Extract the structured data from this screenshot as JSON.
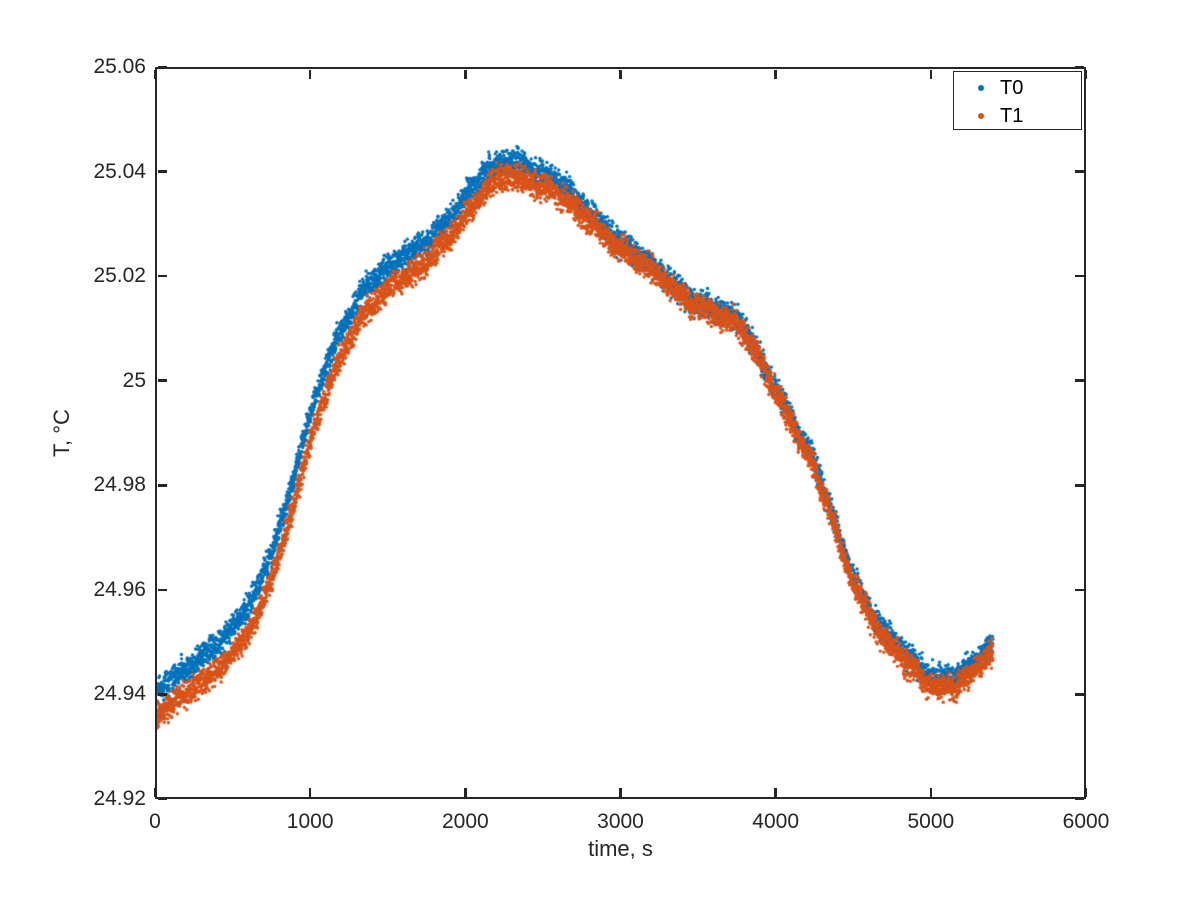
{
  "figure": {
    "background": "#ffffff",
    "axes_color": "#262626"
  },
  "chart_data": {
    "type": "scatter",
    "title": "",
    "xlabel": "time, s",
    "ylabel": "T, °C",
    "xlim": [
      0,
      6000
    ],
    "ylim": [
      24.92,
      25.06
    ],
    "xticks": [
      0,
      1000,
      2000,
      3000,
      4000,
      5000,
      6000
    ],
    "xtick_labels": [
      "0",
      "1000",
      "2000",
      "3000",
      "4000",
      "5000",
      "6000"
    ],
    "yticks": [
      24.92,
      24.94,
      24.96,
      24.98,
      25,
      25.02,
      25.04,
      25.06
    ],
    "ytick_labels": [
      "24.92",
      "24.94",
      "24.96",
      "24.98",
      "25",
      "25.02",
      "25.04",
      "25.06"
    ],
    "grid": false,
    "legend": {
      "position": "top-right",
      "entries": [
        {
          "label": "T0",
          "color": "#0072BD"
        },
        {
          "label": "T1",
          "color": "#D95319"
        }
      ]
    },
    "marker": {
      "style": "dot",
      "radius_px": 1.7
    },
    "noise": {
      "std": 0.0012,
      "wiggle": [
        {
          "amp": 0.0004,
          "period_s": 530,
          "phase": 1.1
        },
        {
          "amp": 0.0003,
          "period_s": 170,
          "phase": 2.6
        }
      ]
    },
    "sampling": {
      "t_start": 0,
      "t_end": 5400,
      "n_points": 5400
    },
    "series": [
      {
        "name": "T0",
        "color": "#0072BD",
        "seed": 42,
        "control_t": [
          0,
          150,
          300,
          450,
          550,
          650,
          750,
          850,
          950,
          1050,
          1150,
          1250,
          1350,
          1450,
          1550,
          1650,
          1750,
          1850,
          1950,
          2050,
          2150,
          2250,
          2350,
          2450,
          2550,
          2650,
          2750,
          2850,
          2950,
          3050,
          3150,
          3250,
          3350,
          3450,
          3550,
          3650,
          3750,
          3850,
          3950,
          4050,
          4150,
          4250,
          4350,
          4450,
          4550,
          4650,
          4750,
          4850,
          4950,
          5050,
          5150,
          5250,
          5350,
          5400
        ],
        "control_T": [
          24.94,
          24.9435,
          24.9475,
          24.951,
          24.9545,
          24.959,
          24.9675,
          24.977,
          24.988,
          24.998,
          25.006,
          25.0125,
          25.018,
          25.0205,
          25.0225,
          25.024,
          25.0265,
          25.03,
          25.0335,
          25.037,
          25.04,
          25.042,
          25.042,
          25.0405,
          25.039,
          25.0365,
          25.0335,
          25.031,
          25.028,
          25.0255,
          25.023,
          25.0205,
          25.018,
          25.016,
          25.0145,
          25.013,
          25.0115,
          25.007,
          25.002,
          24.996,
          24.99,
          24.9835,
          24.9755,
          24.9665,
          24.9595,
          24.954,
          24.95,
          24.947,
          24.9445,
          24.9435,
          24.9435,
          24.945,
          24.948,
          24.9495
        ]
      },
      {
        "name": "T1",
        "color": "#D95319",
        "seed": 1337,
        "control_t": [
          0,
          150,
          300,
          450,
          550,
          650,
          750,
          850,
          950,
          1050,
          1150,
          1250,
          1350,
          1450,
          1550,
          1650,
          1750,
          1850,
          1950,
          2050,
          2150,
          2250,
          2350,
          2450,
          2550,
          2650,
          2750,
          2850,
          2950,
          3050,
          3150,
          3250,
          3350,
          3450,
          3550,
          3650,
          3750,
          3850,
          3950,
          4050,
          4150,
          4250,
          4350,
          4450,
          4550,
          4650,
          4750,
          4850,
          4950,
          5050,
          5150,
          5250,
          5350,
          5400
        ],
        "control_T": [
          24.9355,
          24.9389,
          24.9428,
          24.9462,
          24.9495,
          24.954,
          24.9625,
          24.972,
          24.983,
          24.993,
          25.0011,
          25.0078,
          25.0135,
          25.0163,
          25.0185,
          25.0201,
          25.0227,
          25.0263,
          25.0299,
          25.0335,
          25.0368,
          25.039,
          25.0391,
          25.0378,
          25.0365,
          25.0343,
          25.0316,
          25.0294,
          25.0267,
          25.0244,
          25.022,
          25.0196,
          25.0172,
          25.0152,
          25.0137,
          25.0122,
          25.0107,
          25.0062,
          25.0012,
          24.9952,
          24.9892,
          24.9826,
          24.9746,
          24.9655,
          24.9585,
          24.9528,
          24.9486,
          24.9454,
          24.9428,
          24.9417,
          24.9417,
          24.9433,
          24.9464,
          24.948
        ]
      }
    ]
  }
}
